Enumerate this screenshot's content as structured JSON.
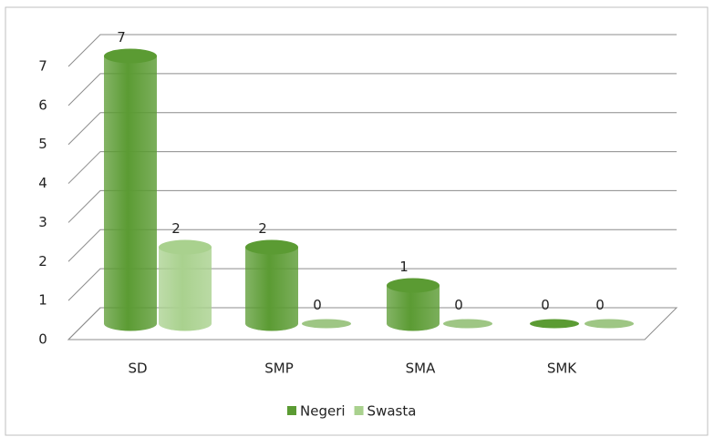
{
  "chart_data": {
    "type": "bar3d",
    "categories": [
      "SD",
      "SMP",
      "SMA",
      "SMK"
    ],
    "series": [
      {
        "name": "Negeri",
        "color": "#5b9b33",
        "values": [
          7,
          2,
          1,
          0
        ]
      },
      {
        "name": "Swasta",
        "color": "#a9d18e",
        "values": [
          2,
          0,
          0,
          0
        ]
      }
    ],
    "ylim": [
      0,
      7
    ],
    "yticks": [
      0,
      1,
      2,
      3,
      4,
      5,
      6,
      7
    ],
    "grid": true,
    "legend": "bottom"
  }
}
